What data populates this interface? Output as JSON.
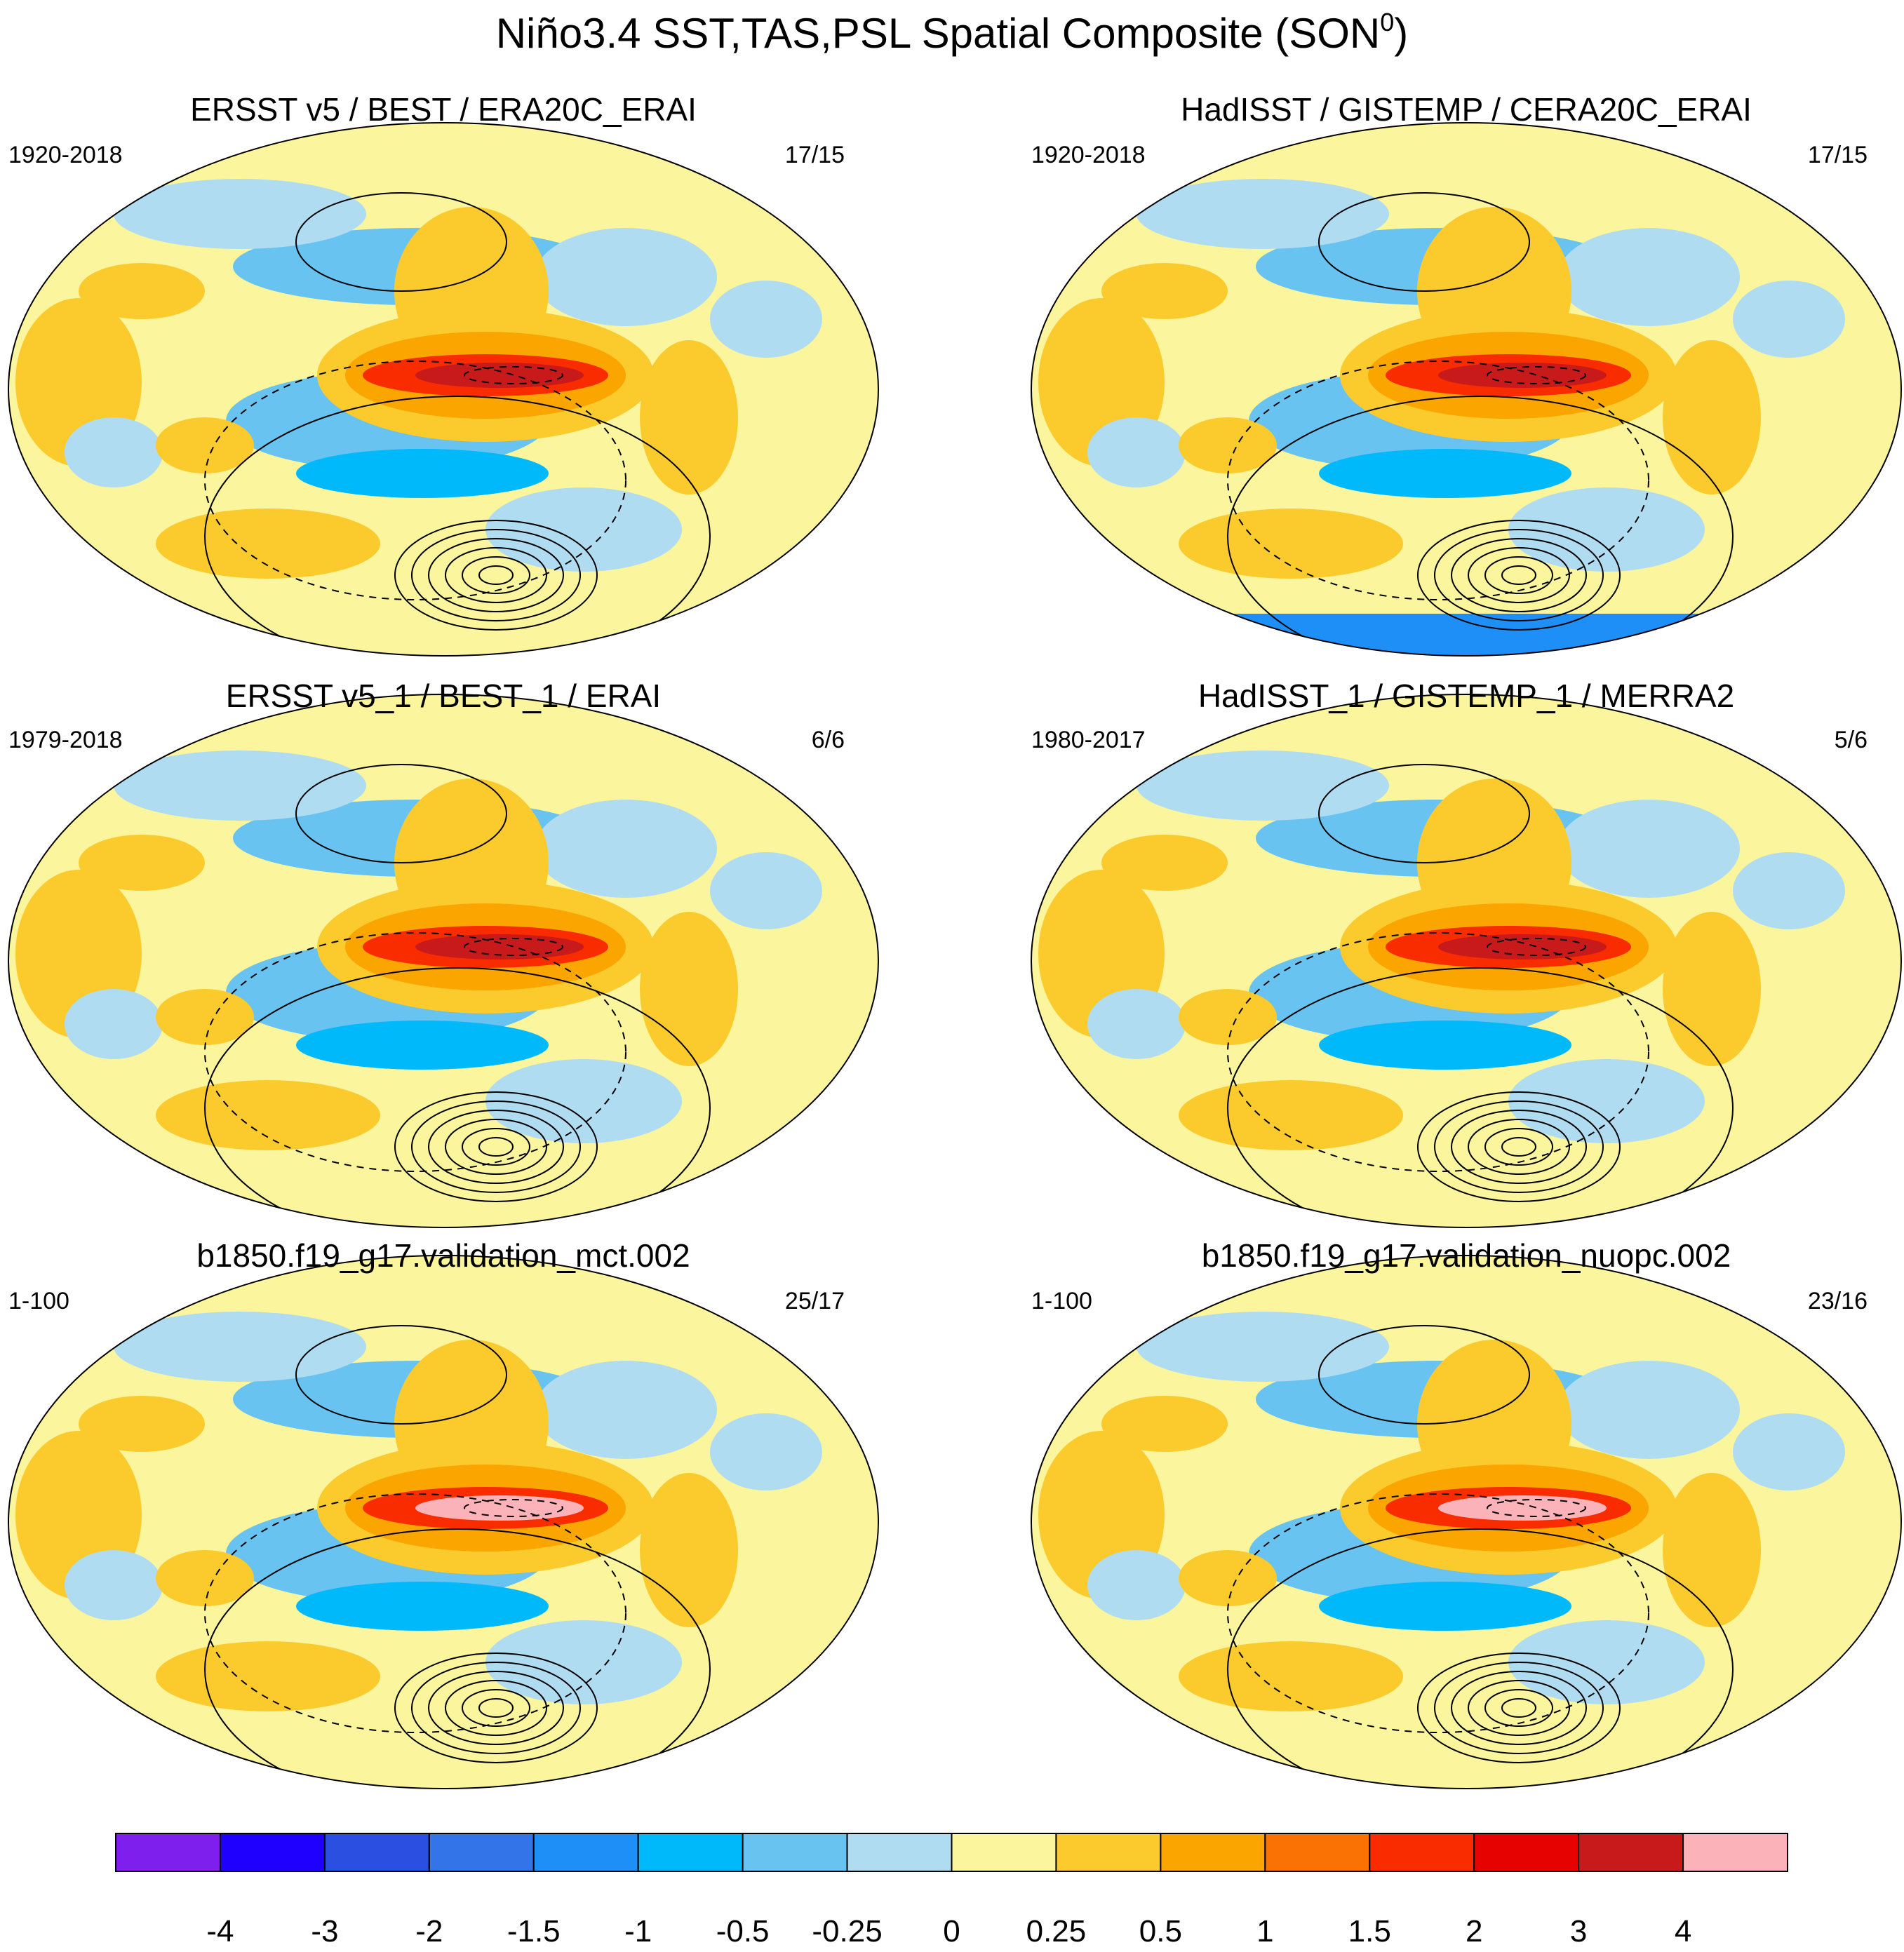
{
  "figure": {
    "title_main": "Niño3.4 SST,TAS,PSL Spatial Composite (SON",
    "title_sup": "0",
    "title_close": ")"
  },
  "panels": [
    {
      "title": "ERSST v5 / BEST / ERA20C_ERAI",
      "period": "1920-2018",
      "count": "17/15",
      "fields": [
        "SST",
        "TAS",
        "PSL"
      ],
      "peak_category": "3",
      "antarctic_negative": false
    },
    {
      "title": "HadISST / GISTEMP / CERA20C_ERAI",
      "period": "1920-2018",
      "count": "17/15",
      "fields": [
        "SST",
        "TAS",
        "PSL"
      ],
      "peak_category": "3",
      "antarctic_negative": true
    },
    {
      "title": "ERSST v5_1 / BEST_1 / ERAI",
      "period": "1979-2018",
      "count": "6/6",
      "fields": [
        "SST",
        "TAS",
        "PSL"
      ],
      "peak_category": "3",
      "antarctic_negative": false
    },
    {
      "title": "HadISST_1 / GISTEMP_1 / MERRA2",
      "period": "1980-2017",
      "count": "5/6",
      "fields": [
        "SST",
        "TAS",
        "PSL"
      ],
      "peak_category": "3",
      "antarctic_negative": false
    },
    {
      "title": "b1850.f19_g17.validation_mct.002",
      "period": "1-100",
      "count": "25/17",
      "fields": [
        "SST",
        "TAS",
        "PSL"
      ],
      "peak_category": "4",
      "antarctic_negative": false
    },
    {
      "title": "b1850.f19_g17.validation_nuopc.002",
      "period": "1-100",
      "count": "23/16",
      "fields": [
        "SST",
        "TAS",
        "PSL"
      ],
      "peak_category": "4",
      "antarctic_negative": false
    }
  ],
  "colorbar": {
    "colors": [
      "#7f1fee",
      "#1f00fe",
      "#2b4fe0",
      "#3375e9",
      "#1f8ff8",
      "#00b9fb",
      "#69c3f0",
      "#b0dcf2",
      "#fbf59d",
      "#fbcb2e",
      "#fba500",
      "#fb7204",
      "#f92c00",
      "#e60200",
      "#c81a1a",
      "#fbb2b8"
    ],
    "labels": [
      "-4",
      "-3",
      "-2",
      "-1.5",
      "-1",
      "-0.5",
      "-0.25",
      "0",
      "0.25",
      "0.5",
      "1",
      "1.5",
      "2",
      "3",
      "4"
    ]
  }
}
